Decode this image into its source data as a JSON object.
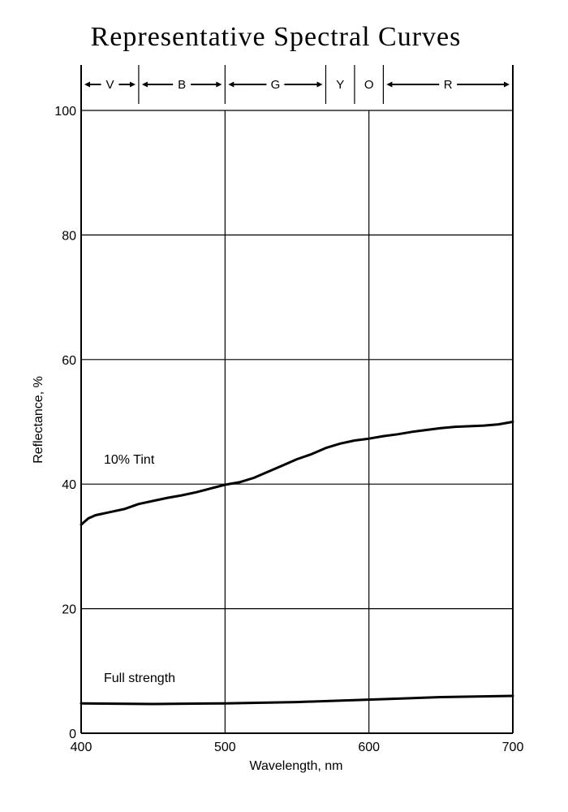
{
  "chart_data": {
    "type": "line",
    "title": "Representative Spectral Curves",
    "xlabel": "Wavelength, nm",
    "ylabel": "Reflectance, %",
    "xlim": [
      400,
      700
    ],
    "ylim": [
      0,
      100
    ],
    "x_ticks": [
      "400",
      "500",
      "600",
      "700"
    ],
    "y_ticks": [
      "0",
      "20",
      "40",
      "60",
      "80",
      "100"
    ],
    "grid": true,
    "color_bands": [
      {
        "label": "V",
        "start": 400,
        "end": 440
      },
      {
        "label": "B",
        "start": 440,
        "end": 500
      },
      {
        "label": "G",
        "start": 500,
        "end": 570
      },
      {
        "label": "Y",
        "start": 570,
        "end": 590
      },
      {
        "label": "O",
        "start": 590,
        "end": 610
      },
      {
        "label": "R",
        "start": 610,
        "end": 700
      }
    ],
    "series": [
      {
        "name": "10% Tint",
        "x": [
          400,
          405,
          410,
          420,
          430,
          440,
          450,
          460,
          470,
          480,
          490,
          500,
          510,
          520,
          530,
          540,
          550,
          560,
          570,
          580,
          590,
          600,
          610,
          620,
          630,
          640,
          650,
          660,
          670,
          680,
          690,
          700
        ],
        "values": [
          33.5,
          34.5,
          35.0,
          35.5,
          36.0,
          36.8,
          37.3,
          37.8,
          38.2,
          38.7,
          39.3,
          39.9,
          40.3,
          41.0,
          42.0,
          43.0,
          44.0,
          44.8,
          45.8,
          46.5,
          47.0,
          47.3,
          47.7,
          48.0,
          48.4,
          48.7,
          49.0,
          49.2,
          49.3,
          49.4,
          49.6,
          50.0
        ]
      },
      {
        "name": "Full strength",
        "x": [
          400,
          450,
          500,
          550,
          600,
          650,
          700
        ],
        "values": [
          4.8,
          4.7,
          4.8,
          5.0,
          5.4,
          5.8,
          6.0
        ]
      }
    ]
  }
}
